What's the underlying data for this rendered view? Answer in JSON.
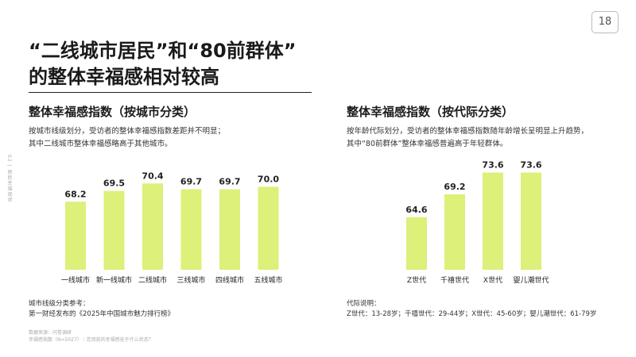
{
  "page": {
    "number": "18",
    "side_label": "02 | 居民幸福现状",
    "headline": [
      "“二线城市居民”和“80前群体”",
      "的整体幸福感相对较高"
    ]
  },
  "charts": {
    "city": {
      "title": "整体幸福感指数（按城市分类）",
      "desc": [
        "按城市线级划分，受访者的整体幸福感指数差距并不明显；",
        "其中二线城市整体幸福感略高于其他城市。"
      ],
      "note_title": "城市线级分类参考：",
      "note_text": "第一财经发布的《2025年中国城市魅力排行榜》"
    },
    "gen": {
      "title": "整体幸福感指数（按代际分类）",
      "desc": [
        "按年龄代际划分，受访者的整体幸福感指数随年龄增长呈明显上升趋势，",
        "其中“80前群体”整体幸福感普遍高于年轻群体。"
      ],
      "note_title": "代际说明：",
      "note_text": "Z世代：13-28岁；千禧世代：29-44岁；X世代：45-60岁；婴儿潮世代：61-79岁"
    }
  },
  "footer": [
    "数据来源：问卷调研",
    "幸福感指数（N=5027）｜您目前的幸福感处于什么状态？"
  ],
  "colors": {
    "bar": "#dcf07a",
    "text": "#222222"
  },
  "chart_data": [
    {
      "type": "bar",
      "title": "整体幸福感指数（按城市分类）",
      "categories": [
        "一线城市",
        "新一线城市",
        "二线城市",
        "三线城市",
        "四线城市",
        "五线城市"
      ],
      "values": [
        68.2,
        69.5,
        70.4,
        69.7,
        69.7,
        70.0
      ],
      "data_labels": [
        "68.2",
        "69.5",
        "70.4",
        "69.7",
        "69.7",
        "70.0"
      ],
      "ylim": [
        60,
        71
      ],
      "grid": false
    },
    {
      "type": "bar",
      "title": "整体幸福感指数（按代际分类）",
      "categories": [
        "Z世代",
        "千禧世代",
        "X世代",
        "婴儿潮世代"
      ],
      "values": [
        64.6,
        69.2,
        73.6,
        73.6
      ],
      "data_labels": [
        "64.6",
        "69.2",
        "73.6",
        "73.6"
      ],
      "ylim": [
        54,
        74
      ],
      "grid": false
    }
  ]
}
